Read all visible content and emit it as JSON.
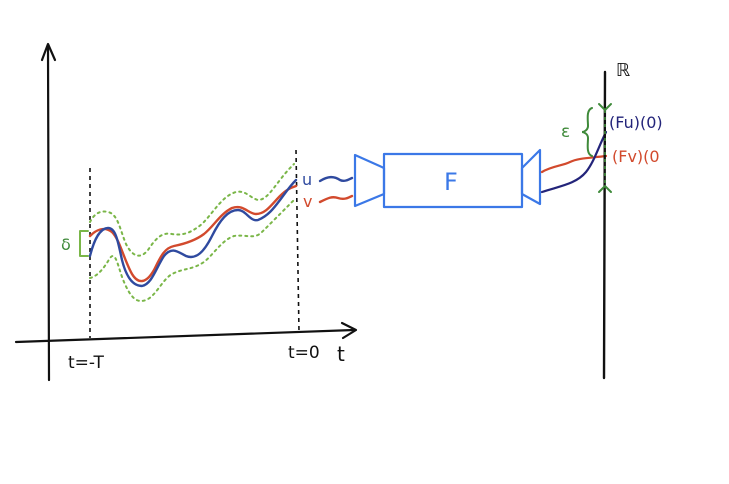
{
  "colors": {
    "ink": "#111111",
    "u_series": "#2f4a9f",
    "v_series": "#d24a2d",
    "tube": "#7ab648",
    "box": "#3b78e7",
    "epsilon": "#3f8a3a",
    "Fu_text": "#23247a",
    "Fv_text": "#d24a2d"
  },
  "time_axis": {
    "axis_label": "t",
    "start_label": "t=-T",
    "end_label": "t=0"
  },
  "signals": {
    "u_label": "u",
    "v_label": "v",
    "delta_label": "δ"
  },
  "functional_box": {
    "label": "F"
  },
  "real_line": {
    "label": "ℝ",
    "epsilon_label": "ε",
    "Fu_label": "(Fu)(0)",
    "Fv_label": "(Fv)(0"
  },
  "icons": [
    "arrow-up-icon",
    "arrow-right-icon",
    "funnel-input-icon",
    "funnel-output-icon"
  ]
}
